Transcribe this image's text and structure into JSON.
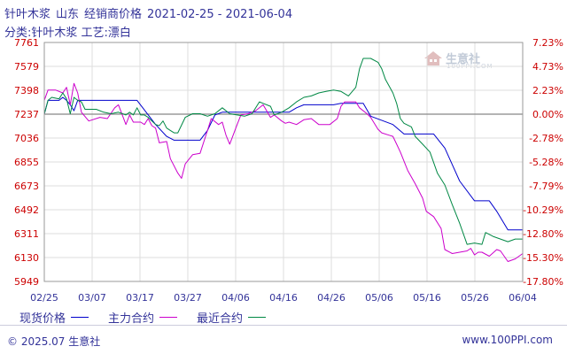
{
  "header": {
    "product": "针叶木浆",
    "region": "山东",
    "price_type": "经销商价格",
    "date_range": "2021-02-25 - 2021-06-04",
    "category_line": "分类:针叶木浆 工艺:漂白"
  },
  "watermark": {
    "brand": "生意社",
    "url": "100PPI.COM"
  },
  "legend": {
    "items": [
      {
        "label": "现货价格",
        "color": "#0000cc"
      },
      {
        "label": "主力合约",
        "color": "#cc00cc"
      },
      {
        "label": "最近合约",
        "color": "#008844"
      }
    ]
  },
  "footer": {
    "copyright": "© 2025.07 生意社",
    "url": "www.100PPI.com"
  },
  "chart_data": {
    "type": "line",
    "xlabel": "",
    "ylabel": "",
    "x_ticks": [
      "02/25",
      "03/07",
      "03/17",
      "03/27",
      "04/06",
      "04/16",
      "04/26",
      "05/06",
      "05/16",
      "05/26",
      "06/04"
    ],
    "y_ticks_left": [
      7761,
      7579,
      7398,
      7237,
      7036,
      6855,
      6673,
      6492,
      6311,
      6130,
      5949
    ],
    "y_ticks_right": [
      "7.23%",
      "4.73%",
      "2.23%",
      "0.00%",
      "-2.78%",
      "-5.28%",
      "-7.79%",
      "-10.29%",
      "-12.80%",
      "-15.30%",
      "-17.80%"
    ],
    "ylim": [
      5949,
      7761
    ],
    "reference_value": 7237,
    "x_range_days": [
      0,
      99
    ],
    "grid": true,
    "series": [
      {
        "name": "现货价格",
        "color": "#0000cc",
        "points": [
          [
            0,
            7237
          ],
          [
            1,
            7330
          ],
          [
            4,
            7330
          ],
          [
            5,
            7350
          ],
          [
            6,
            7330
          ],
          [
            7,
            7300
          ],
          [
            8,
            7260
          ],
          [
            9,
            7330
          ],
          [
            25,
            7330
          ],
          [
            30,
            7150
          ],
          [
            33,
            7050
          ],
          [
            35,
            7020
          ],
          [
            42,
            7020
          ],
          [
            44,
            7100
          ],
          [
            46,
            7230
          ],
          [
            48,
            7250
          ],
          [
            66,
            7250
          ],
          [
            68,
            7280
          ],
          [
            70,
            7300
          ],
          [
            78,
            7300
          ],
          [
            80,
            7310
          ],
          [
            86,
            7310
          ],
          [
            88,
            7220
          ],
          [
            94,
            7150
          ],
          [
            97,
            7070
          ],
          [
            105,
            7070
          ],
          [
            108,
            6960
          ],
          [
            112,
            6710
          ],
          [
            116,
            6560
          ],
          [
            120,
            6560
          ],
          [
            122,
            6480
          ],
          [
            125,
            6340
          ],
          [
            129,
            6340
          ]
        ]
      },
      {
        "name": "主力合约",
        "color": "#cc00cc",
        "points": [
          [
            0,
            7330
          ],
          [
            1,
            7400
          ],
          [
            3,
            7400
          ],
          [
            5,
            7380
          ],
          [
            6,
            7420
          ],
          [
            7,
            7300
          ],
          [
            8,
            7450
          ],
          [
            9,
            7380
          ],
          [
            10,
            7250
          ],
          [
            12,
            7180
          ],
          [
            15,
            7210
          ],
          [
            17,
            7200
          ],
          [
            19,
            7280
          ],
          [
            20,
            7300
          ],
          [
            22,
            7150
          ],
          [
            23,
            7230
          ],
          [
            24,
            7170
          ],
          [
            26,
            7170
          ],
          [
            27,
            7150
          ],
          [
            28,
            7200
          ],
          [
            29,
            7140
          ],
          [
            30,
            7120
          ],
          [
            31,
            7000
          ],
          [
            33,
            7010
          ],
          [
            34,
            6880
          ],
          [
            36,
            6770
          ],
          [
            37,
            6730
          ],
          [
            38,
            6840
          ],
          [
            40,
            6910
          ],
          [
            42,
            6920
          ],
          [
            44,
            7100
          ],
          [
            45,
            7200
          ],
          [
            47,
            7150
          ],
          [
            48,
            7170
          ],
          [
            49,
            7060
          ],
          [
            50,
            6990
          ],
          [
            52,
            7150
          ],
          [
            53,
            7230
          ],
          [
            55,
            7240
          ],
          [
            57,
            7260
          ],
          [
            59,
            7300
          ],
          [
            61,
            7210
          ],
          [
            62,
            7230
          ],
          [
            64,
            7180
          ],
          [
            65,
            7160
          ],
          [
            66,
            7170
          ],
          [
            68,
            7150
          ],
          [
            70,
            7190
          ],
          [
            72,
            7200
          ],
          [
            74,
            7150
          ],
          [
            75,
            7150
          ],
          [
            77,
            7150
          ],
          [
            79,
            7200
          ],
          [
            80,
            7290
          ],
          [
            81,
            7320
          ],
          [
            84,
            7320
          ],
          [
            85,
            7280
          ],
          [
            87,
            7240
          ],
          [
            88,
            7210
          ],
          [
            90,
            7110
          ],
          [
            91,
            7080
          ],
          [
            93,
            7060
          ],
          [
            94,
            7050
          ],
          [
            95,
            6990
          ],
          [
            96,
            6930
          ],
          [
            98,
            6790
          ],
          [
            100,
            6690
          ],
          [
            102,
            6580
          ],
          [
            103,
            6480
          ],
          [
            105,
            6440
          ],
          [
            107,
            6350
          ],
          [
            108,
            6190
          ],
          [
            110,
            6160
          ],
          [
            112,
            6170
          ],
          [
            114,
            6180
          ],
          [
            115,
            6200
          ],
          [
            116,
            6150
          ],
          [
            117,
            6170
          ],
          [
            118,
            6170
          ],
          [
            120,
            6140
          ],
          [
            122,
            6190
          ],
          [
            123,
            6180
          ],
          [
            125,
            6100
          ],
          [
            127,
            6120
          ],
          [
            129,
            6160
          ]
        ]
      },
      {
        "name": "最近合约",
        "color": "#008844",
        "points": [
          [
            0,
            7237
          ],
          [
            1,
            7330
          ],
          [
            2,
            7350
          ],
          [
            4,
            7340
          ],
          [
            5,
            7380
          ],
          [
            6,
            7340
          ],
          [
            7,
            7240
          ],
          [
            8,
            7350
          ],
          [
            9,
            7330
          ],
          [
            10,
            7320
          ],
          [
            11,
            7270
          ],
          [
            14,
            7270
          ],
          [
            16,
            7250
          ],
          [
            18,
            7240
          ],
          [
            20,
            7250
          ],
          [
            22,
            7230
          ],
          [
            23,
            7250
          ],
          [
            24,
            7230
          ],
          [
            25,
            7280
          ],
          [
            26,
            7230
          ],
          [
            27,
            7230
          ],
          [
            28,
            7210
          ],
          [
            29,
            7180
          ],
          [
            30,
            7150
          ],
          [
            31,
            7140
          ],
          [
            32,
            7180
          ],
          [
            33,
            7120
          ],
          [
            34,
            7100
          ],
          [
            35,
            7080
          ],
          [
            36,
            7080
          ],
          [
            38,
            7210
          ],
          [
            40,
            7240
          ],
          [
            42,
            7240
          ],
          [
            44,
            7220
          ],
          [
            46,
            7240
          ],
          [
            48,
            7280
          ],
          [
            50,
            7240
          ],
          [
            52,
            7230
          ],
          [
            54,
            7220
          ],
          [
            56,
            7240
          ],
          [
            58,
            7320
          ],
          [
            59,
            7310
          ],
          [
            61,
            7290
          ],
          [
            62,
            7230
          ],
          [
            64,
            7250
          ],
          [
            66,
            7280
          ],
          [
            68,
            7320
          ],
          [
            70,
            7350
          ],
          [
            72,
            7360
          ],
          [
            74,
            7380
          ],
          [
            76,
            7390
          ],
          [
            78,
            7400
          ],
          [
            80,
            7390
          ],
          [
            82,
            7360
          ],
          [
            84,
            7420
          ],
          [
            85,
            7560
          ],
          [
            86,
            7640
          ],
          [
            88,
            7640
          ],
          [
            90,
            7610
          ],
          [
            91,
            7560
          ],
          [
            92,
            7480
          ],
          [
            94,
            7380
          ],
          [
            95,
            7310
          ],
          [
            96,
            7200
          ],
          [
            97,
            7160
          ],
          [
            99,
            7130
          ],
          [
            100,
            7050
          ],
          [
            102,
            6990
          ],
          [
            104,
            6930
          ],
          [
            106,
            6770
          ],
          [
            108,
            6680
          ],
          [
            110,
            6530
          ],
          [
            112,
            6390
          ],
          [
            114,
            6230
          ],
          [
            116,
            6240
          ],
          [
            118,
            6230
          ],
          [
            119,
            6320
          ],
          [
            121,
            6290
          ],
          [
            123,
            6270
          ],
          [
            125,
            6250
          ],
          [
            127,
            6270
          ],
          [
            129,
            6270
          ]
        ]
      }
    ]
  }
}
